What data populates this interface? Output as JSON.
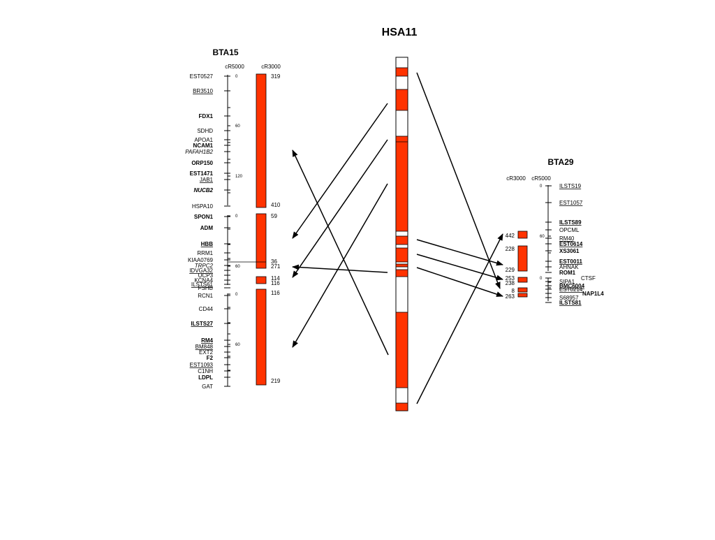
{
  "title": "HSA11",
  "colors": {
    "segment": "#ff3300",
    "line": "#000000",
    "background": "#ffffff"
  },
  "bta15": {
    "title": "BTA15",
    "unit_left": "cR5000",
    "unit_right": "cR3000",
    "groups": [
      {
        "ticks": [
          "0",
          "60",
          "120"
        ],
        "markers": [
          {
            "text": "EST0527",
            "style": "normal"
          },
          {
            "text": "BR3510",
            "style": "underline"
          },
          {
            "text": "FDX1",
            "style": "bold"
          },
          {
            "text": "SDHD",
            "style": "normal"
          },
          {
            "text": "APOA1",
            "style": "normal"
          },
          {
            "text": "NCAM1",
            "style": "bold"
          },
          {
            "text": "PAFAH1B2",
            "style": "italic"
          },
          {
            "text": "ORP150",
            "style": "bold"
          },
          {
            "text": "EST1471",
            "style": "bold"
          },
          {
            "text": "JAB1",
            "style": "underline"
          },
          {
            "text": "NUCB2",
            "style": "bold-italic"
          },
          {
            "text": "HSPA10",
            "style": "normal"
          }
        ]
      },
      {
        "ticks": [
          "0",
          "60"
        ],
        "markers": [
          {
            "text": "SPON1",
            "style": "bold"
          },
          {
            "text": "ADM",
            "style": "bold"
          },
          {
            "text": "HBB",
            "style": "bold-underline"
          },
          {
            "text": "RRM1",
            "style": "normal"
          },
          {
            "text": "KIAA0769",
            "style": "normal"
          },
          {
            "text": "TRPC2",
            "style": "italic"
          },
          {
            "text": "IDVGA32",
            "style": "underline"
          },
          {
            "text": "UCP3",
            "style": "normal"
          },
          {
            "text": "KCNA4",
            "style": "normal"
          },
          {
            "text": "ILSTS61",
            "style": "underline"
          },
          {
            "text": "FSHB",
            "style": "normal"
          }
        ]
      },
      {
        "ticks": [
          "0",
          "60"
        ],
        "markers": [
          {
            "text": "RCN1",
            "style": "normal"
          },
          {
            "text": "CD44",
            "style": "normal"
          },
          {
            "text": "ILSTS27",
            "style": "bold-underline"
          },
          {
            "text": "RM4",
            "style": "bold-underline"
          },
          {
            "text": "BM848",
            "style": "underline"
          },
          {
            "text": "EXT2",
            "style": "normal"
          },
          {
            "text": "F2",
            "style": "bold"
          },
          {
            "text": "EST1093",
            "style": "underline"
          },
          {
            "text": "C1NH",
            "style": "normal"
          },
          {
            "text": "LDPL",
            "style": "bold"
          },
          {
            "text": "GAT",
            "style": "normal"
          }
        ]
      }
    ],
    "segments": [
      {
        "labels": [
          "319",
          "410"
        ]
      },
      {
        "labels": [
          "59",
          "36",
          "271"
        ]
      },
      {
        "labels": [
          "114",
          "116"
        ]
      },
      {
        "labels": [
          "116",
          "219"
        ]
      }
    ]
  },
  "bta29": {
    "title": "BTA29",
    "unit_left": "cR3000",
    "unit_right": "cR5000",
    "groups": [
      {
        "ticks": [
          "0",
          "60"
        ],
        "markers": [
          {
            "text": "ILSTS19",
            "style": "underline"
          },
          {
            "text": "EST1057",
            "style": "underline"
          },
          {
            "text": "ILSTS89",
            "style": "bold-underline"
          },
          {
            "text": "OPCML",
            "style": "normal"
          },
          {
            "text": "RM40",
            "style": "underline"
          },
          {
            "text": "EST0614",
            "style": "bold-underline"
          },
          {
            "text": "XS3061",
            "style": "bold"
          },
          {
            "text": "EST0011",
            "style": "bold-underline"
          },
          {
            "text": "AHNAK",
            "style": "normal"
          },
          {
            "text": "ROM1",
            "style": "bold"
          }
        ]
      },
      {
        "ticks": [
          "0"
        ],
        "markers": [
          {
            "text": "CTSF",
            "style": "normal"
          },
          {
            "text": "SIPA1",
            "style": "normal"
          },
          {
            "text": "BMC6004",
            "style": "bold-underline"
          },
          {
            "text": "EST0214",
            "style": "underline"
          },
          {
            "text": "NAP1L4",
            "style": "bold"
          },
          {
            "text": "S68957",
            "style": "normal"
          },
          {
            "text": "ILSTS81",
            "style": "bold-underline"
          }
        ]
      }
    ],
    "segments": [
      {
        "labels": [
          "442"
        ]
      },
      {
        "labels": [
          "228",
          "229"
        ]
      },
      {
        "labels": [
          "253",
          "238"
        ]
      },
      {
        "labels": [
          "8",
          "263"
        ]
      }
    ]
  }
}
